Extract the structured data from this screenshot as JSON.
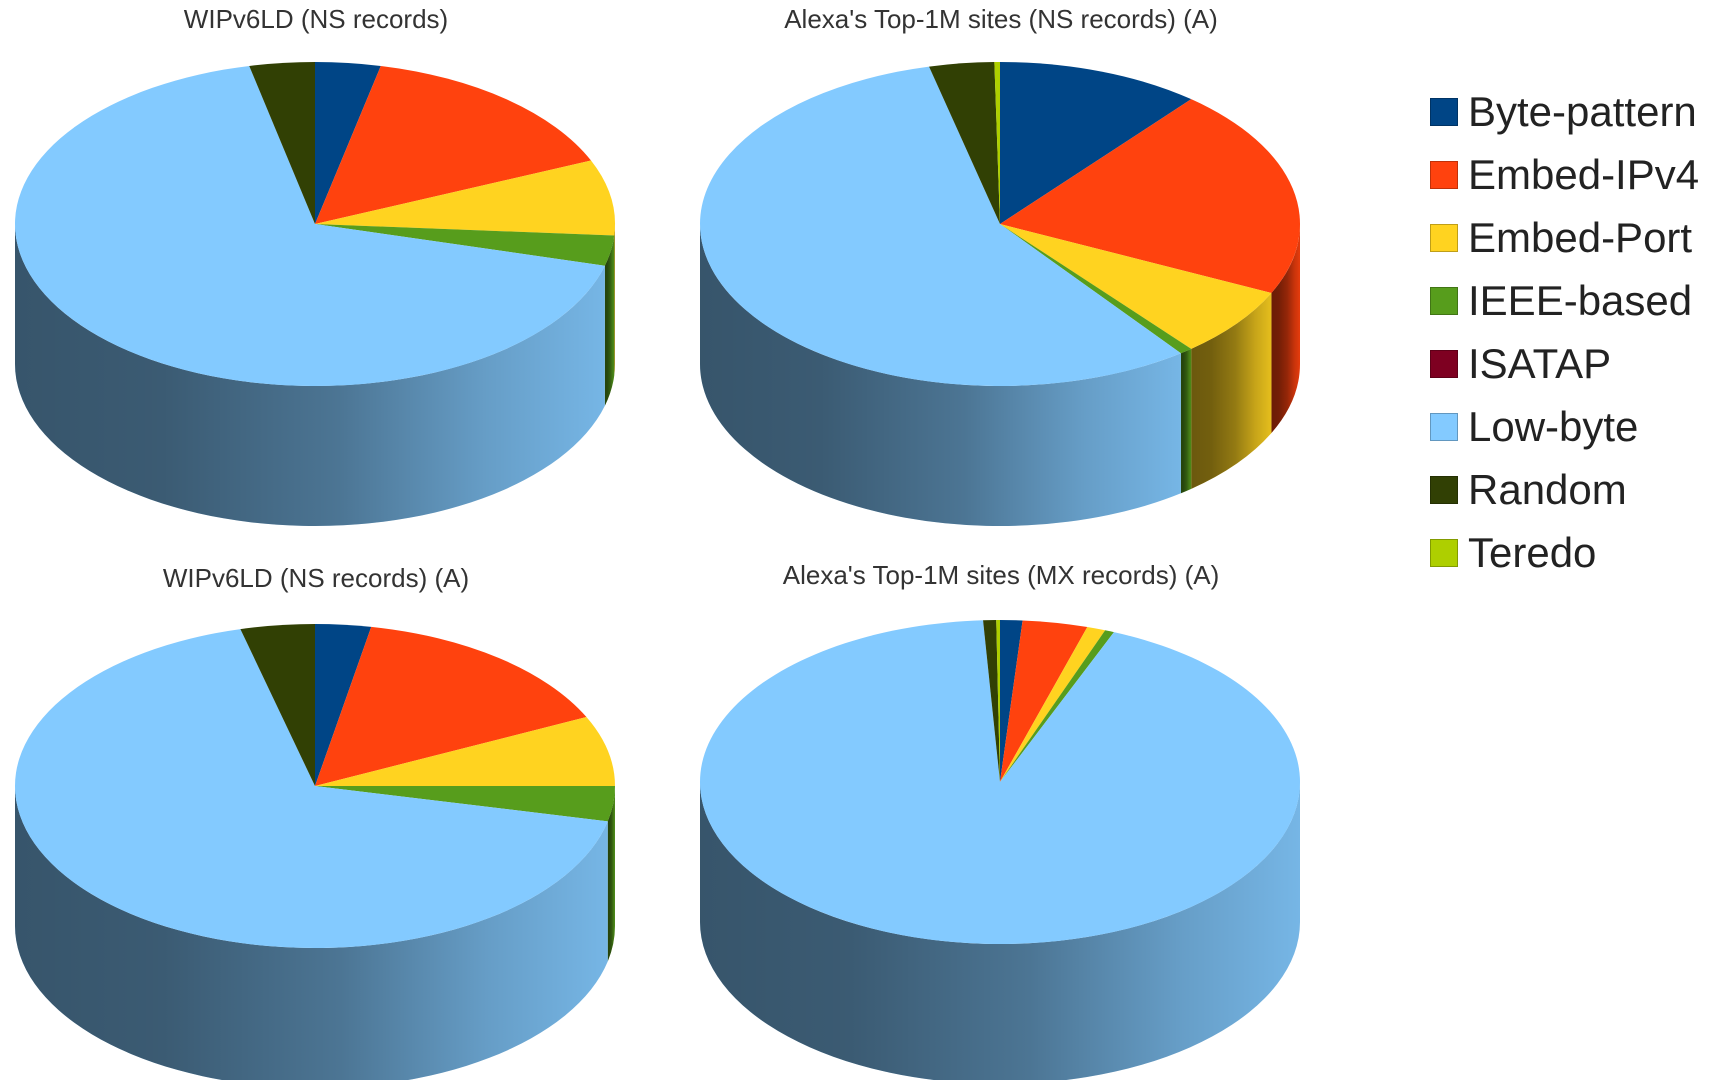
{
  "chart_data": [
    {
      "type": "pie",
      "title": "WIPv6LD (NS records)",
      "categories": [
        "Byte-pattern",
        "Embed-IPv4",
        "Embed-Port",
        "IEEE-based",
        "ISATAP",
        "Low-byte",
        "Random",
        "Teredo"
      ],
      "values": [
        3.5,
        15.0,
        7.5,
        3.0,
        0.0,
        67.0,
        3.5,
        0.0
      ]
    },
    {
      "type": "pie",
      "title": "Alexa's Top-1M sites (NS records) (A)",
      "categories": [
        "Byte-pattern",
        "Embed-IPv4",
        "Embed-Port",
        "IEEE-based",
        "ISATAP",
        "Low-byte",
        "Random",
        "Teredo"
      ],
      "values": [
        11.0,
        21.0,
        7.0,
        0.7,
        0.0,
        56.5,
        3.5,
        0.3
      ]
    },
    {
      "type": "pie",
      "title": "WIPv6LD (NS records) (A)",
      "categories": [
        "Byte-pattern",
        "Embed-IPv4",
        "Embed-Port",
        "IEEE-based",
        "ISATAP",
        "Low-byte",
        "Random",
        "Teredo"
      ],
      "values": [
        3.0,
        15.0,
        7.0,
        3.5,
        0.0,
        67.5,
        4.0,
        0.0
      ]
    },
    {
      "type": "pie",
      "title": "Alexa's Top-1M sites (MX records) (A)",
      "categories": [
        "Byte-pattern",
        "Embed-IPv4",
        "Embed-Port",
        "IEEE-based",
        "ISATAP",
        "Low-byte",
        "Random",
        "Teredo"
      ],
      "values": [
        1.2,
        3.5,
        1.0,
        0.5,
        0.0,
        92.9,
        0.7,
        0.2
      ]
    }
  ],
  "legend": {
    "placement": "right",
    "items": [
      {
        "label": "Byte-pattern",
        "color": "#004586"
      },
      {
        "label": "Embed-IPv4",
        "color": "#ff420e"
      },
      {
        "label": "Embed-Port",
        "color": "#ffd320"
      },
      {
        "label": "IEEE-based",
        "color": "#579d1c"
      },
      {
        "label": "ISATAP",
        "color": "#7e0021"
      },
      {
        "label": "Low-byte",
        "color": "#83caff"
      },
      {
        "label": "Random",
        "color": "#314004"
      },
      {
        "label": "Teredo",
        "color": "#aecf00"
      }
    ]
  }
}
